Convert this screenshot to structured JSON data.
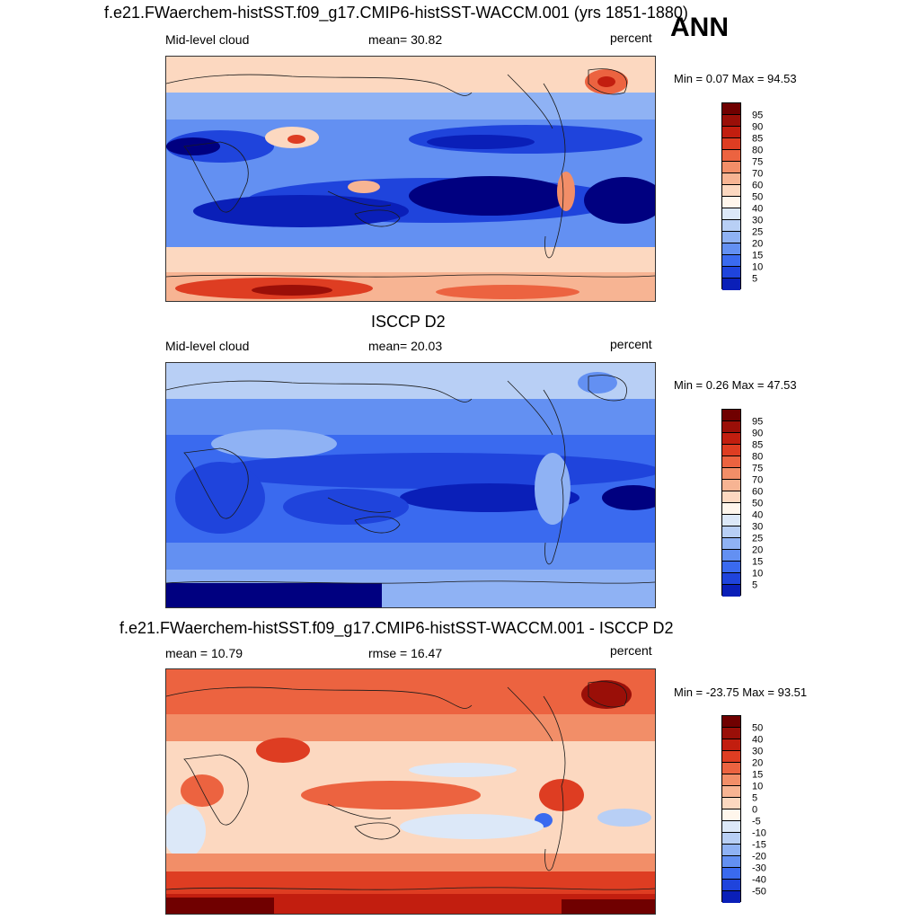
{
  "season": "ANN",
  "colors": {
    "model": [
      "#000080",
      "#0a1fb8",
      "#1f44dc",
      "#3a6aef",
      "#6390f2",
      "#8fb2f4",
      "#b8cff5",
      "#dce8f8",
      "#fff6ec",
      "#fcd8c0",
      "#f7b493",
      "#f28e68",
      "#ec6340",
      "#de3d22",
      "#c21e0f",
      "#9a0f08",
      "#700000"
    ],
    "diff": [
      "#000080",
      "#0a1fb8",
      "#1f44dc",
      "#3a6aef",
      "#6390f2",
      "#8fb2f4",
      "#b8cff5",
      "#dce8f8",
      "#fff6ec",
      "#fcd8c0",
      "#f7b493",
      "#f28e68",
      "#ec6340",
      "#de3d22",
      "#c21e0f",
      "#9a0f08",
      "#700000"
    ],
    "land_line": "#1a1a1a"
  },
  "panels": [
    {
      "id": "model",
      "title": "f.e21.FWaerchem-histSST.f09_g17.CMIP6-histSST-WACCM.001 (yrs 1851-1880)",
      "left_label": "Mid-level cloud",
      "center_label": "mean=  30.82",
      "right_label": "percent",
      "minmax": "Min =   0.07 Max =  94.53"
    },
    {
      "id": "obs",
      "title": "ISCCP D2",
      "left_label": "Mid-level cloud",
      "center_label": "mean=  20.03",
      "right_label": "percent",
      "minmax": "Min =   0.26 Max =  47.53"
    },
    {
      "id": "diff",
      "title": "f.e21.FWaerchem-histSST.f09_g17.CMIP6-histSST-WACCM.001 - ISCCP D2",
      "left_label": "mean =  10.79",
      "center_label": "rmse =  16.47",
      "right_label": "percent",
      "minmax": "Min = -23.75 Max =  93.51"
    }
  ],
  "chart_data": [
    {
      "type": "heatmap",
      "title": "f.e21.FWaerchem-histSST.f09_g17.CMIP6-histSST-WACCM.001 (yrs 1851-1880)",
      "variable": "Mid-level cloud",
      "units": "percent",
      "mean": 30.82,
      "min": 0.07,
      "max": 94.53,
      "colorbar_levels": [
        5,
        10,
        15,
        20,
        25,
        30,
        40,
        50,
        60,
        70,
        75,
        80,
        85,
        90,
        95
      ],
      "colorbar_labels": [
        "95",
        "90",
        "85",
        "80",
        "75",
        "70",
        "60",
        "50",
        "40",
        "30",
        "25",
        "20",
        "15",
        "10",
        "5"
      ]
    },
    {
      "type": "heatmap",
      "title": "ISCCP D2",
      "variable": "Mid-level cloud",
      "units": "percent",
      "mean": 20.03,
      "min": 0.26,
      "max": 47.53,
      "colorbar_levels": [
        5,
        10,
        15,
        20,
        25,
        30,
        40,
        50,
        60,
        70,
        75,
        80,
        85,
        90,
        95
      ],
      "colorbar_labels": [
        "95",
        "90",
        "85",
        "80",
        "75",
        "70",
        "60",
        "50",
        "40",
        "30",
        "25",
        "20",
        "15",
        "10",
        "5"
      ]
    },
    {
      "type": "heatmap",
      "title": "f.e21.FWaerchem-histSST.f09_g17.CMIP6-histSST-WACCM.001 - ISCCP D2",
      "units": "percent",
      "mean": 10.79,
      "rmse": 16.47,
      "min": -23.75,
      "max": 93.51,
      "colorbar_levels": [
        -50,
        -40,
        -30,
        -20,
        -15,
        -10,
        -5,
        0,
        5,
        10,
        15,
        20,
        30,
        40,
        50
      ],
      "colorbar_labels": [
        "50",
        "40",
        "30",
        "20",
        "15",
        "10",
        "5",
        "0",
        "-5",
        "-10",
        "-15",
        "-20",
        "-30",
        "-40",
        "-50"
      ]
    }
  ]
}
